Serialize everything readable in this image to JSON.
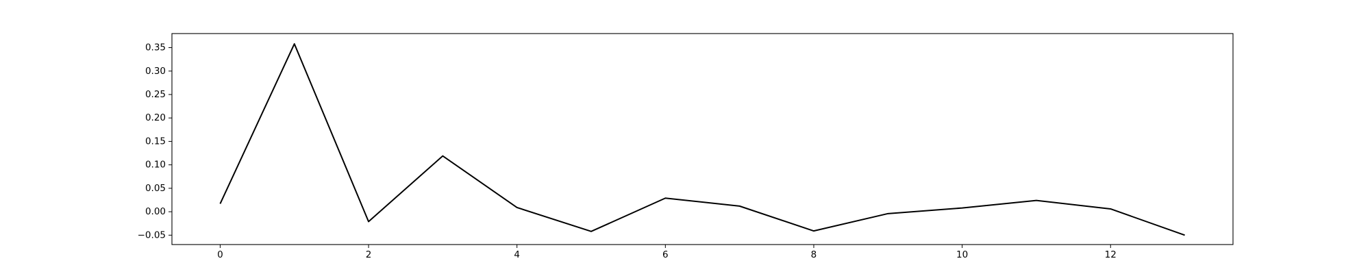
{
  "chart_data": {
    "type": "line",
    "title": "",
    "xlabel": "",
    "ylabel": "",
    "xlim": [
      -0.65,
      13.65
    ],
    "ylim": [
      -0.07,
      0.38
    ],
    "x_ticks": [
      0,
      2,
      4,
      6,
      8,
      10,
      12
    ],
    "x_tick_labels": [
      "0",
      "2",
      "4",
      "6",
      "8",
      "10",
      "12"
    ],
    "y_ticks": [
      -0.05,
      0.0,
      0.05,
      0.1,
      0.15,
      0.2,
      0.25,
      0.3,
      0.35
    ],
    "y_tick_labels": [
      "−0.05",
      "0.00",
      "0.05",
      "0.10",
      "0.15",
      "0.20",
      "0.25",
      "0.30",
      "0.35"
    ],
    "grid": false,
    "series": [
      {
        "color": "#000000",
        "x": [
          0,
          1,
          2,
          3,
          4,
          5,
          6,
          7,
          8,
          9,
          10,
          11,
          12,
          13
        ],
        "y": [
          0.017,
          0.358,
          -0.021,
          0.119,
          0.009,
          -0.042,
          0.029,
          0.012,
          -0.041,
          -0.004,
          0.008,
          0.024,
          0.006,
          -0.05
        ]
      }
    ]
  }
}
